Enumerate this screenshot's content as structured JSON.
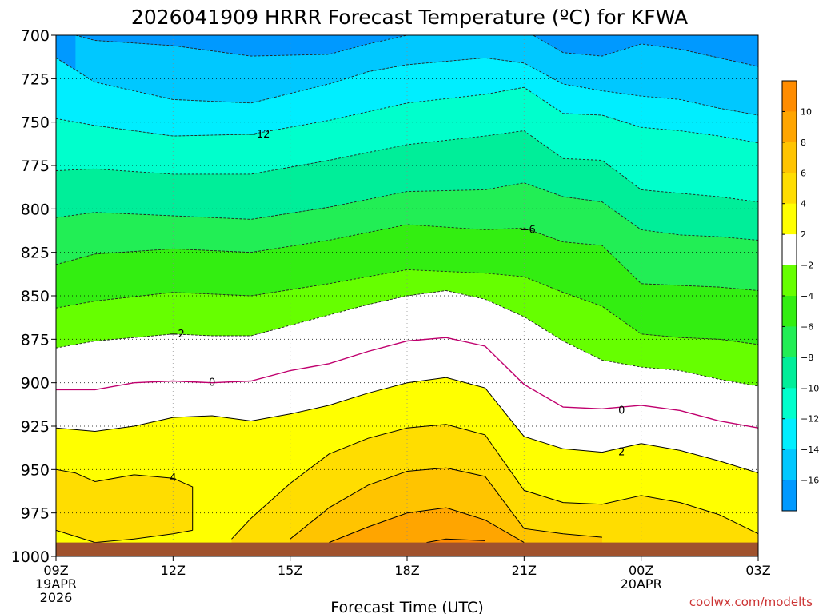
{
  "chart_data": {
    "type": "heatmap",
    "title": "2026041909 HRRR Forecast Temperature (ºC) for KFWA",
    "xlabel": "Forecast Time (UTC)",
    "ylabel": "",
    "credit": "coolwx.com/modelts",
    "y_ticks": [
      "700",
      "725",
      "750",
      "775",
      "800",
      "825",
      "850",
      "875",
      "900",
      "925",
      "950",
      "975",
      "1000"
    ],
    "x_ticks": [
      {
        "hour": 0,
        "label": "09Z",
        "date1": "19APR",
        "date2": "2026"
      },
      {
        "hour": 3,
        "label": "12Z",
        "date1": "",
        "date2": ""
      },
      {
        "hour": 6,
        "label": "15Z",
        "date1": "",
        "date2": ""
      },
      {
        "hour": 9,
        "label": "18Z",
        "date1": "",
        "date2": ""
      },
      {
        "hour": 12,
        "label": "21Z",
        "date1": "",
        "date2": ""
      },
      {
        "hour": 15,
        "label": "00Z",
        "date1": "20APR",
        "date2": ""
      },
      {
        "hour": 18,
        "label": "03Z",
        "date1": "",
        "date2": ""
      }
    ],
    "x_range": [
      0,
      18
    ],
    "y_range": [
      700,
      1000
    ],
    "ground_level": 992,
    "grid": true,
    "colorbar": {
      "labels": [
        "10",
        "8",
        "6",
        "4",
        "2",
        "−2",
        "−4",
        "−6",
        "−8",
        "−10",
        "−12",
        "−14",
        "−16"
      ],
      "levels": [
        12,
        10,
        8,
        6,
        4,
        2,
        -2,
        -4,
        -6,
        -8,
        -10,
        -12,
        -14,
        -16,
        -18
      ],
      "colors": [
        "#ff8c00",
        "#ffa500",
        "#ffc400",
        "#ffdd00",
        "#ffff00",
        "#ffffff",
        "#66ff00",
        "#33ee11",
        "#22ee55",
        "#00ee99",
        "#00ffcc",
        "#00eeff",
        "#00c8ff",
        "#0099ff"
      ]
    },
    "contours": [
      {
        "level": -16,
        "points": [
          [
            0.5,
            700
          ],
          [
            1,
            703
          ],
          [
            3,
            706
          ],
          [
            5,
            712
          ],
          [
            7,
            711
          ],
          [
            8,
            705
          ],
          [
            9,
            700
          ],
          [
            11,
            700
          ],
          [
            12,
            697
          ],
          [
            13,
            710
          ],
          [
            14,
            712
          ],
          [
            15,
            705
          ],
          [
            16,
            708
          ],
          [
            17,
            713
          ],
          [
            18,
            718
          ]
        ]
      },
      {
        "level": -14,
        "points": [
          [
            0,
            713
          ],
          [
            1,
            727
          ],
          [
            3,
            737
          ],
          [
            5,
            739
          ],
          [
            7,
            728
          ],
          [
            8,
            721
          ],
          [
            9,
            717
          ],
          [
            11,
            713
          ],
          [
            12,
            716
          ],
          [
            13,
            728
          ],
          [
            14,
            732
          ],
          [
            15,
            735
          ],
          [
            16,
            737
          ],
          [
            17,
            742
          ],
          [
            18,
            746
          ]
        ]
      },
      {
        "level": -12,
        "points": [
          [
            0,
            748
          ],
          [
            1,
            752
          ],
          [
            3,
            758
          ],
          [
            5,
            757
          ],
          [
            7,
            749
          ],
          [
            9,
            739
          ],
          [
            11,
            734
          ],
          [
            12,
            730
          ],
          [
            13,
            745
          ],
          [
            14,
            746
          ],
          [
            15,
            753
          ],
          [
            16,
            755
          ],
          [
            17,
            758
          ],
          [
            18,
            762
          ]
        ]
      },
      {
        "level": -10,
        "points": [
          [
            0,
            778
          ],
          [
            1,
            777
          ],
          [
            3,
            780
          ],
          [
            5,
            780
          ],
          [
            7,
            772
          ],
          [
            9,
            763
          ],
          [
            11,
            758
          ],
          [
            12,
            755
          ],
          [
            13,
            771
          ],
          [
            14,
            772
          ],
          [
            15,
            789
          ],
          [
            16,
            791
          ],
          [
            17,
            793
          ],
          [
            18,
            796
          ]
        ]
      },
      {
        "level": -8,
        "points": [
          [
            0,
            805
          ],
          [
            1,
            802
          ],
          [
            3,
            804
          ],
          [
            5,
            806
          ],
          [
            7,
            799
          ],
          [
            9,
            790
          ],
          [
            11,
            789
          ],
          [
            12,
            785
          ],
          [
            13,
            793
          ],
          [
            14,
            796
          ],
          [
            15,
            812
          ],
          [
            16,
            815
          ],
          [
            17,
            816
          ],
          [
            18,
            818
          ]
        ]
      },
      {
        "level": -6,
        "points": [
          [
            0,
            832
          ],
          [
            1,
            826
          ],
          [
            3,
            823
          ],
          [
            5,
            825
          ],
          [
            7,
            818
          ],
          [
            9,
            809
          ],
          [
            11,
            812
          ],
          [
            12,
            811
          ],
          [
            13,
            819
          ],
          [
            14,
            821
          ],
          [
            15,
            843
          ],
          [
            16,
            844
          ],
          [
            17,
            845
          ],
          [
            18,
            847
          ]
        ]
      },
      {
        "level": -4,
        "points": [
          [
            0,
            857
          ],
          [
            1,
            853
          ],
          [
            3,
            848
          ],
          [
            5,
            850
          ],
          [
            7,
            843
          ],
          [
            9,
            835
          ],
          [
            11,
            837
          ],
          [
            12,
            839
          ],
          [
            13,
            848
          ],
          [
            14,
            856
          ],
          [
            15,
            872
          ],
          [
            16,
            874
          ],
          [
            17,
            875
          ],
          [
            18,
            878
          ]
        ]
      },
      {
        "level": -2,
        "points": [
          [
            0,
            880
          ],
          [
            1,
            876
          ],
          [
            2,
            874
          ],
          [
            3,
            872
          ],
          [
            4,
            873
          ],
          [
            5,
            873
          ],
          [
            6,
            867
          ],
          [
            7,
            861
          ],
          [
            8,
            855
          ],
          [
            9,
            850
          ],
          [
            10,
            847
          ],
          [
            11,
            852
          ],
          [
            12,
            862
          ],
          [
            13,
            876
          ],
          [
            14,
            887
          ],
          [
            15,
            891
          ],
          [
            16,
            893
          ],
          [
            17,
            898
          ],
          [
            18,
            902
          ]
        ]
      },
      {
        "level": 0,
        "points": [
          [
            0,
            904
          ],
          [
            1,
            904
          ],
          [
            2,
            900
          ],
          [
            3,
            899
          ],
          [
            4,
            900
          ],
          [
            5,
            899
          ],
          [
            6,
            893
          ],
          [
            7,
            889
          ],
          [
            8,
            882
          ],
          [
            9,
            876
          ],
          [
            10,
            874
          ],
          [
            11,
            879
          ],
          [
            12,
            901
          ],
          [
            13,
            914
          ],
          [
            14,
            915
          ],
          [
            15,
            913
          ],
          [
            16,
            916
          ],
          [
            17,
            922
          ],
          [
            18,
            926
          ]
        ]
      },
      {
        "level": 2,
        "points": [
          [
            0,
            926
          ],
          [
            1,
            928
          ],
          [
            2,
            925
          ],
          [
            3,
            920
          ],
          [
            4,
            919
          ],
          [
            5,
            922
          ],
          [
            6,
            918
          ],
          [
            7,
            913
          ],
          [
            8,
            906
          ],
          [
            9,
            900
          ],
          [
            10,
            897
          ],
          [
            11,
            903
          ],
          [
            12,
            931
          ],
          [
            13,
            938
          ],
          [
            14,
            940
          ],
          [
            15,
            935
          ],
          [
            16,
            939
          ],
          [
            17,
            945
          ],
          [
            18,
            952
          ]
        ]
      },
      {
        "level": 4,
        "points": [
          [
            3.5,
            985
          ],
          [
            3,
            987
          ],
          [
            2,
            990
          ],
          [
            1,
            992
          ],
          [
            0,
            985
          ],
          [
            0,
            950
          ],
          [
            0.5,
            952
          ],
          [
            1,
            957
          ],
          [
            2,
            953
          ],
          [
            3,
            955
          ],
          [
            3.5,
            960
          ],
          [
            3.5,
            985
          ]
        ]
      },
      {
        "level": 4,
        "points": [
          [
            4.5,
            990
          ],
          [
            5,
            978
          ],
          [
            6,
            958
          ],
          [
            7,
            941
          ],
          [
            8,
            932
          ],
          [
            9,
            926
          ],
          [
            10,
            924
          ],
          [
            11,
            930
          ],
          [
            12,
            962
          ],
          [
            13,
            969
          ],
          [
            14,
            970
          ],
          [
            15,
            965
          ],
          [
            16,
            969
          ],
          [
            17,
            976
          ],
          [
            18,
            987
          ]
        ]
      },
      {
        "level": 6,
        "points": [
          [
            6,
            990
          ],
          [
            7,
            972
          ],
          [
            8,
            959
          ],
          [
            9,
            951
          ],
          [
            10,
            949
          ],
          [
            11,
            954
          ],
          [
            12,
            984
          ],
          [
            13,
            987
          ],
          [
            14,
            989
          ]
        ]
      },
      {
        "level": 8,
        "points": [
          [
            7,
            992
          ],
          [
            8,
            983
          ],
          [
            9,
            975
          ],
          [
            10,
            972
          ],
          [
            11,
            979
          ],
          [
            12,
            992
          ]
        ]
      },
      {
        "level": 10,
        "points": [
          [
            9.5,
            992
          ],
          [
            10,
            990
          ],
          [
            11,
            991
          ]
        ]
      }
    ],
    "contour_labels": [
      {
        "text": "−12",
        "hour": 5.2,
        "p": 757
      },
      {
        "text": "−6",
        "hour": 12.1,
        "p": 812
      },
      {
        "text": "−2",
        "hour": 3.1,
        "p": 872
      },
      {
        "text": "0",
        "hour": 4.0,
        "p": 900
      },
      {
        "text": "0",
        "hour": 14.5,
        "p": 916
      },
      {
        "text": "2",
        "hour": 14.5,
        "p": 940
      },
      {
        "text": "4",
        "hour": 3.0,
        "p": 955
      }
    ]
  }
}
